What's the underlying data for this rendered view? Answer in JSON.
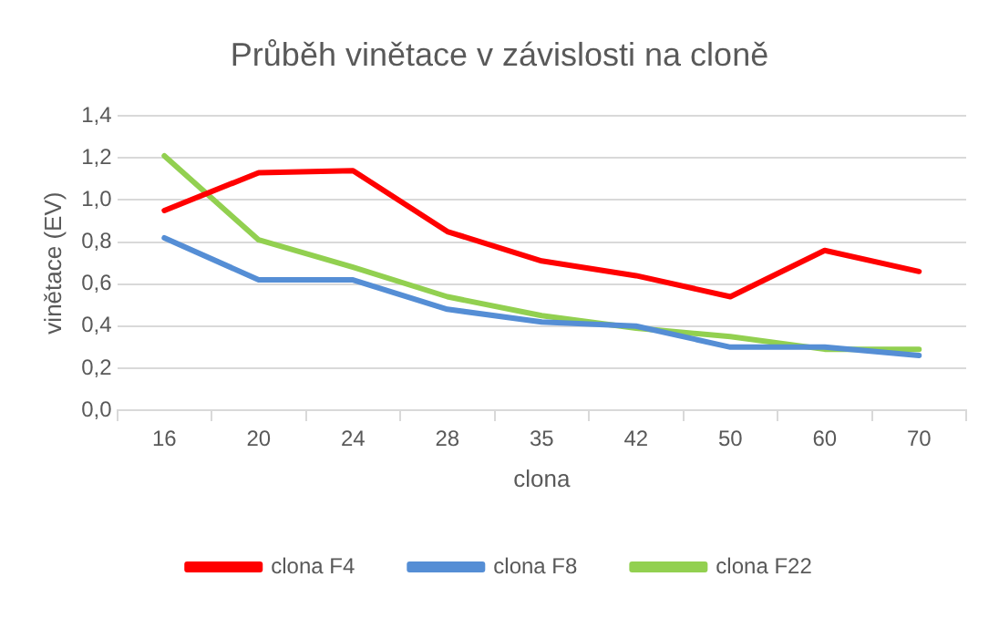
{
  "chart_data": {
    "type": "line",
    "title": "Průběh vinětace v závislosti na cloně",
    "xlabel": "clona",
    "ylabel": "vinětace (EV)",
    "categories": [
      "16",
      "20",
      "24",
      "28",
      "35",
      "42",
      "50",
      "60",
      "70"
    ],
    "series": [
      {
        "name": "clona F4",
        "color": "#ff0000",
        "values": [
          0.95,
          1.13,
          1.14,
          0.85,
          0.71,
          0.64,
          0.54,
          0.76,
          0.66
        ]
      },
      {
        "name": "clona F8",
        "color": "#558ed5",
        "values": [
          0.82,
          0.62,
          0.62,
          0.48,
          0.42,
          0.4,
          0.3,
          0.3,
          0.26
        ]
      },
      {
        "name": "clona F22",
        "color": "#92d050",
        "values": [
          1.21,
          0.81,
          0.68,
          0.54,
          0.45,
          0.39,
          0.35,
          0.29,
          0.29
        ]
      }
    ],
    "ylim": [
      0,
      1.4
    ],
    "yticks": [
      {
        "value": 0,
        "label": "0,0"
      },
      {
        "value": 0.2,
        "label": "0,2"
      },
      {
        "value": 0.4,
        "label": "0,4"
      },
      {
        "value": 0.6,
        "label": "0,6"
      },
      {
        "value": 0.8,
        "label": "0,8"
      },
      {
        "value": 1.0,
        "label": "1,0"
      },
      {
        "value": 1.2,
        "label": "1,2"
      },
      {
        "value": 1.4,
        "label": "1,4"
      }
    ],
    "grid": "y",
    "legend": "bottom",
    "marker": "none",
    "line_style": "solid"
  }
}
